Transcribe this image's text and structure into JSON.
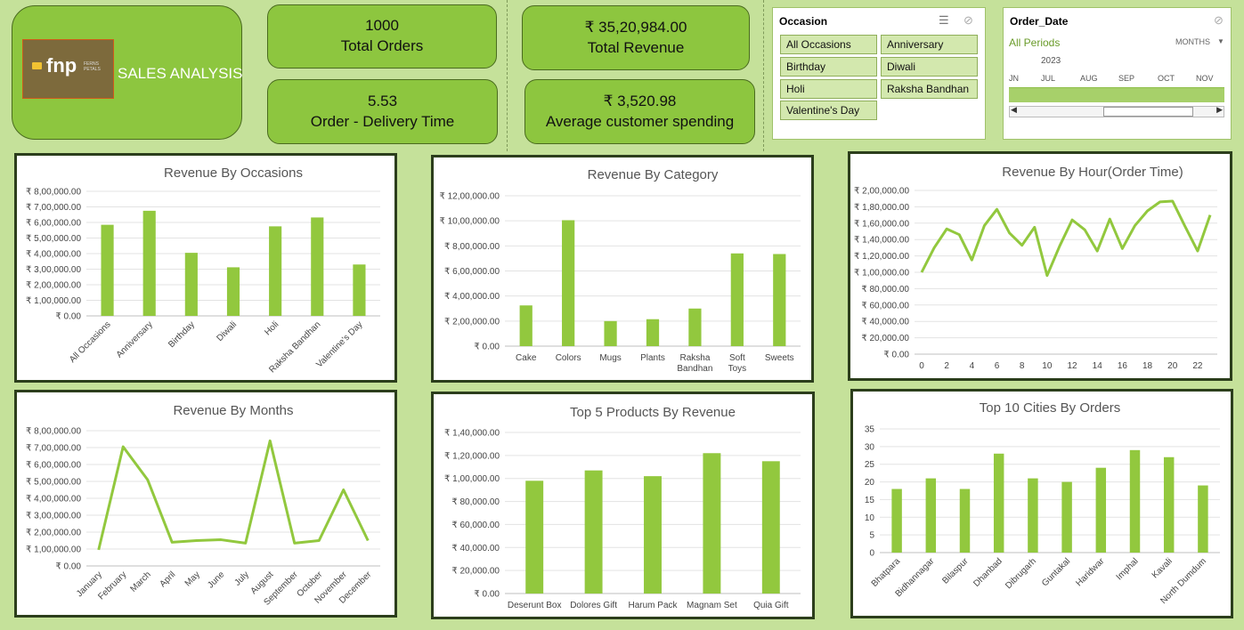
{
  "header": {
    "title": "SALES ANALYSIS",
    "logo_text": "fnp",
    "logo_sub": "FERNS PETALS"
  },
  "kpis": {
    "orders": {
      "value": "1000",
      "label": "Total Orders"
    },
    "revenue": {
      "value": "₹ 35,20,984.00",
      "label": "Total Revenue"
    },
    "delivery": {
      "value": "5.53",
      "label": "Order - Delivery Time"
    },
    "avg": {
      "value": "₹ 3,520.98",
      "label": "Average customer spending"
    }
  },
  "occasion_slicer": {
    "title": "Occasion",
    "items": [
      "All Occasions",
      "Anniversary",
      "Birthday",
      "Diwali",
      "Holi",
      "Raksha Bandhan",
      "Valentine's Day"
    ]
  },
  "date_slicer": {
    "title": "Order_Date",
    "period": "All Periods",
    "unit": "MONTHS",
    "year": "2023",
    "months": [
      "JN",
      "JUL",
      "AUG",
      "SEP",
      "OCT",
      "NOV"
    ]
  },
  "colors": {
    "bar": "#92c83e",
    "kpi": "#8dc63f",
    "background": "#c5e19a",
    "border": "#2c3e1c"
  },
  "chart_data": [
    {
      "id": "occasions",
      "type": "bar",
      "title": "Revenue By Occasions",
      "categories": [
        "All Occasions",
        "Anniversary",
        "Birthday",
        "Diwali",
        "Holi",
        "Raksha Bandhan",
        "Valentine's Day"
      ],
      "values": [
        585000,
        675000,
        405000,
        312000,
        575000,
        632000,
        330000
      ],
      "ylim": [
        0,
        800000
      ],
      "yticks": [
        "₹ 0.00",
        "₹ 1,00,000.00",
        "₹ 2,00,000.00",
        "₹ 3,00,000.00",
        "₹ 4,00,000.00",
        "₹ 5,00,000.00",
        "₹ 6,00,000.00",
        "₹ 7,00,000.00",
        "₹ 8,00,000.00"
      ],
      "rotate": true
    },
    {
      "id": "category",
      "type": "bar",
      "title": "Revenue By Category",
      "categories": [
        "Cake",
        "Colors",
        "Mugs",
        "Plants",
        "Raksha Bandhan",
        "Soft Toys",
        "Sweets"
      ],
      "values": [
        325000,
        1005000,
        200000,
        215000,
        300000,
        740000,
        735000
      ],
      "ylim": [
        0,
        1200000
      ],
      "yticks": [
        "₹ 0.00",
        "₹ 2,00,000.00",
        "₹ 4,00,000.00",
        "₹ 6,00,000.00",
        "₹ 8,00,000.00",
        "₹ 10,00,000.00",
        "₹ 12,00,000.00"
      ],
      "rotate": false
    },
    {
      "id": "hour",
      "type": "line",
      "title": "Revenue By Hour(Order Time)",
      "x": [
        0,
        1,
        2,
        3,
        4,
        5,
        6,
        7,
        8,
        9,
        10,
        11,
        12,
        13,
        14,
        15,
        16,
        17,
        18,
        19,
        20,
        21,
        22,
        23
      ],
      "values": [
        100000,
        130000,
        153000,
        146000,
        115000,
        157000,
        177000,
        148000,
        133000,
        155000,
        96000,
        132000,
        164000,
        152000,
        126000,
        165000,
        129000,
        157000,
        175000,
        186000,
        187000,
        156000,
        126000,
        170000
      ],
      "ylim": [
        0,
        200000
      ],
      "yticks": [
        "₹ 0.00",
        "₹ 20,000.00",
        "₹ 40,000.00",
        "₹ 60,000.00",
        "₹ 80,000.00",
        "₹ 1,00,000.00",
        "₹ 1,20,000.00",
        "₹ 1,40,000.00",
        "₹ 1,60,000.00",
        "₹ 1,80,000.00",
        "₹ 2,00,000.00"
      ],
      "xticks": [
        "0",
        "2",
        "4",
        "6",
        "8",
        "10",
        "12",
        "14",
        "16",
        "18",
        "20",
        "22"
      ]
    },
    {
      "id": "months",
      "type": "line",
      "title": "Revenue By Months",
      "categories": [
        "January",
        "February",
        "March",
        "April",
        "May",
        "June",
        "July",
        "August",
        "September",
        "October",
        "November",
        "December"
      ],
      "values": [
        95000,
        705000,
        510000,
        140000,
        150000,
        155000,
        135000,
        740000,
        135000,
        150000,
        450000,
        150000
      ],
      "ylim": [
        0,
        800000
      ],
      "yticks": [
        "₹ 0.00",
        "₹ 1,00,000.00",
        "₹ 2,00,000.00",
        "₹ 3,00,000.00",
        "₹ 4,00,000.00",
        "₹ 5,00,000.00",
        "₹ 6,00,000.00",
        "₹ 7,00,000.00",
        "₹ 8,00,000.00"
      ],
      "rotate": true
    },
    {
      "id": "products",
      "type": "bar",
      "title": "Top 5 Products By Revenue",
      "categories": [
        "Deserunt Box",
        "Dolores Gift",
        "Harum Pack",
        "Magnam Set",
        "Quia Gift"
      ],
      "values": [
        98000,
        107000,
        102000,
        122000,
        115000
      ],
      "ylim": [
        0,
        140000
      ],
      "yticks": [
        "₹ 0.00",
        "₹ 20,000.00",
        "₹ 40,000.00",
        "₹ 60,000.00",
        "₹ 80,000.00",
        "₹ 1,00,000.00",
        "₹ 1,20,000.00",
        "₹ 1,40,000.00"
      ],
      "rotate": false
    },
    {
      "id": "cities",
      "type": "bar",
      "title": "Top 10 Cities By Orders",
      "categories": [
        "Bhatpara",
        "Bidhannagar",
        "Bilaspur",
        "Dhanbad",
        "Dibrugarh",
        "Guntakal",
        "Haridwar",
        "Imphal",
        "Kavali",
        "North Dumdum"
      ],
      "values": [
        18,
        21,
        18,
        28,
        21,
        20,
        24,
        29,
        27,
        19
      ],
      "ylim": [
        0,
        35
      ],
      "yticks": [
        "0",
        "5",
        "10",
        "15",
        "20",
        "25",
        "30",
        "35"
      ],
      "rotate": true
    }
  ]
}
